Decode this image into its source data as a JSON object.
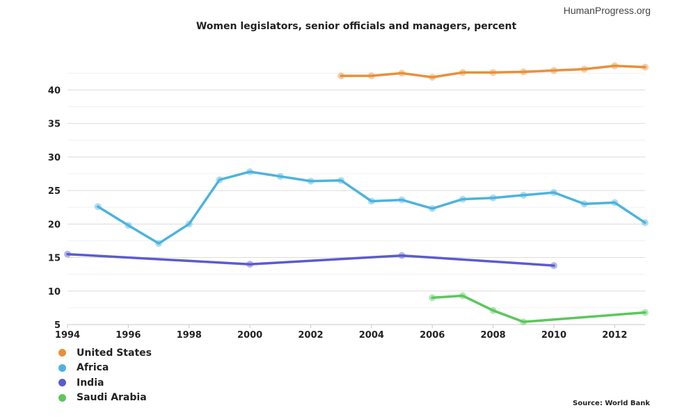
{
  "brand": "HumanProgress.org",
  "source": "Source: World Bank",
  "chart_data": {
    "type": "line",
    "title": "Women legislators, senior officials and managers, percent",
    "xlabel": "",
    "ylabel": "",
    "xlim": [
      1994,
      2013
    ],
    "ylim": [
      5,
      44.5
    ],
    "x_ticks": [
      1994,
      1996,
      1998,
      2000,
      2002,
      2004,
      2006,
      2008,
      2010,
      2012
    ],
    "y_ticks": [
      5,
      10,
      15,
      20,
      25,
      30,
      35,
      40
    ],
    "grid": true,
    "legend_position": "bottom-left",
    "series": [
      {
        "name": "United States",
        "color": "#e8903a",
        "points": [
          [
            2003,
            42.1
          ],
          [
            2004,
            42.1
          ],
          [
            2005,
            42.5
          ],
          [
            2006,
            41.9
          ],
          [
            2007,
            42.6
          ],
          [
            2008,
            42.6
          ],
          [
            2009,
            42.7
          ],
          [
            2010,
            42.9
          ],
          [
            2011,
            43.1
          ],
          [
            2012,
            43.6
          ],
          [
            2013,
            43.4
          ]
        ]
      },
      {
        "name": "Africa",
        "color": "#4cb3df",
        "points": [
          [
            1995,
            22.6
          ],
          [
            1996,
            19.8
          ],
          [
            1997,
            17.1
          ],
          [
            1998,
            20.0
          ],
          [
            1999,
            26.6
          ],
          [
            2000,
            27.8
          ],
          [
            2001,
            27.1
          ],
          [
            2002,
            26.4
          ],
          [
            2003,
            26.5
          ],
          [
            2004,
            23.4
          ],
          [
            2005,
            23.6
          ],
          [
            2006,
            22.3
          ],
          [
            2007,
            23.7
          ],
          [
            2008,
            23.9
          ],
          [
            2009,
            24.3
          ],
          [
            2010,
            24.7
          ],
          [
            2011,
            23.0
          ],
          [
            2012,
            23.2
          ],
          [
            2013,
            20.2
          ]
        ]
      },
      {
        "name": "India",
        "color": "#5b5bd1",
        "points": [
          [
            1994,
            15.5
          ],
          [
            2000,
            14.0
          ],
          [
            2005,
            15.3
          ],
          [
            2010,
            13.8
          ]
        ]
      },
      {
        "name": "Saudi Arabia",
        "color": "#5ac85a",
        "points": [
          [
            2006,
            9.0
          ],
          [
            2007,
            9.3
          ],
          [
            2008,
            7.1
          ],
          [
            2009,
            5.4
          ],
          [
            2013,
            6.8
          ]
        ]
      }
    ]
  }
}
